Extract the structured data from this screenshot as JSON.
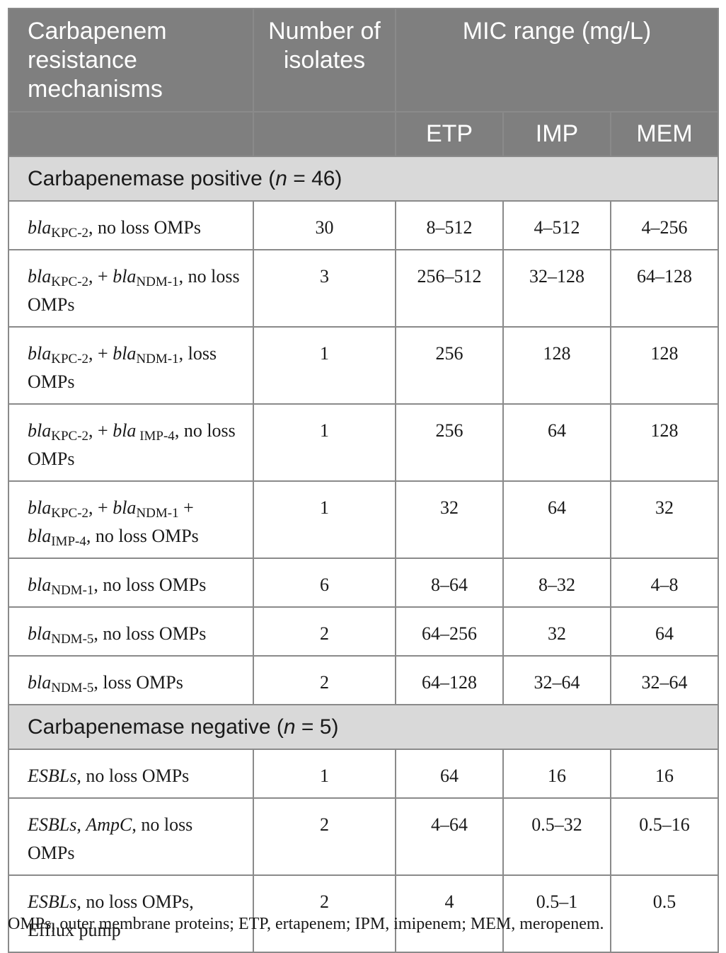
{
  "table": {
    "headers": {
      "mechanism": "Carbapenem resistance mechanisms",
      "isolates": "Number of isolates",
      "mic_range": "MIC range (mg/L)",
      "etp": "ETP",
      "imp": "IMP",
      "mem": "MEM"
    },
    "sections": [
      {
        "title_prefix": "Carbapenemase positive (",
        "title_var": "n",
        "title_suffix": " = 46)",
        "rows": [
          {
            "parts": [
              {
                "t": "bla",
                "i": true
              },
              {
                "t": "KPC-2",
                "sub": true
              },
              {
                "t": ", no loss OMPs"
              }
            ],
            "isolates": "30",
            "etp": "8–512",
            "imp": "4–512",
            "mem": "4–256"
          },
          {
            "parts": [
              {
                "t": "bla",
                "i": true
              },
              {
                "t": "KPC-2",
                "sub": true
              },
              {
                "t": ", + "
              },
              {
                "t": "bla",
                "i": true
              },
              {
                "t": "NDM-1",
                "sub": true
              },
              {
                "t": ", no loss OMPs"
              }
            ],
            "isolates": "3",
            "etp": "256–512",
            "imp": "32–128",
            "mem": "64–128"
          },
          {
            "parts": [
              {
                "t": "bla",
                "i": true
              },
              {
                "t": "KPC-2",
                "sub": true
              },
              {
                "t": ", + "
              },
              {
                "t": "bla",
                "i": true
              },
              {
                "t": "NDM-1",
                "sub": true
              },
              {
                "t": ", loss OMPs"
              }
            ],
            "isolates": "1",
            "etp": "256",
            "imp": "128",
            "mem": "128"
          },
          {
            "parts": [
              {
                "t": "bla",
                "i": true
              },
              {
                "t": "KPC-2",
                "sub": true
              },
              {
                "t": ", + "
              },
              {
                "t": "bla",
                "i": true
              },
              {
                "t": " IMP-4",
                "sub": true
              },
              {
                "t": ", no loss OMPs"
              }
            ],
            "isolates": "1",
            "etp": "256",
            "imp": "64",
            "mem": "128"
          },
          {
            "parts": [
              {
                "t": "bla",
                "i": true
              },
              {
                "t": "KPC-2",
                "sub": true
              },
              {
                "t": ", + "
              },
              {
                "t": "bla",
                "i": true
              },
              {
                "t": "NDM-1",
                "sub": true
              },
              {
                "t": " + "
              },
              {
                "t": "bla",
                "i": true
              },
              {
                "t": "IMP-4",
                "sub": true
              },
              {
                "t": ", no loss OMPs"
              }
            ],
            "isolates": "1",
            "etp": "32",
            "imp": "64",
            "mem": "32"
          },
          {
            "parts": [
              {
                "t": "bla",
                "i": true
              },
              {
                "t": "NDM-1",
                "sub": true
              },
              {
                "t": ", no loss OMPs"
              }
            ],
            "isolates": "6",
            "etp": "8–64",
            "imp": "8–32",
            "mem": "4–8"
          },
          {
            "parts": [
              {
                "t": "bla",
                "i": true
              },
              {
                "t": "NDM-5",
                "sub": true
              },
              {
                "t": ", no loss OMPs"
              }
            ],
            "isolates": "2",
            "etp": "64–256",
            "imp": "32",
            "mem": "64"
          },
          {
            "parts": [
              {
                "t": "bla",
                "i": true
              },
              {
                "t": "NDM-5",
                "sub": true
              },
              {
                "t": ", loss OMPs"
              }
            ],
            "isolates": "2",
            "etp": "64–128",
            "imp": "32–64",
            "mem": "32–64"
          }
        ]
      },
      {
        "title_prefix": "Carbapenemase negative (",
        "title_var": "n",
        "title_suffix": " = 5)",
        "rows": [
          {
            "parts": [
              {
                "t": "ESBLs",
                "i": true
              },
              {
                "t": ", no loss OMPs"
              }
            ],
            "isolates": "1",
            "etp": "64",
            "imp": "16",
            "mem": "16"
          },
          {
            "parts": [
              {
                "t": "ESBLs",
                "i": true
              },
              {
                "t": ", "
              },
              {
                "t": "AmpC",
                "i": true
              },
              {
                "t": ", no loss OMPs"
              }
            ],
            "isolates": "2",
            "etp": "4–64",
            "imp": "0.5–32",
            "mem": "0.5–16"
          },
          {
            "parts": [
              {
                "t": "ESBLs",
                "i": true
              },
              {
                "t": ", no loss OMPs, Efflux pump"
              }
            ],
            "isolates": "2",
            "etp": "4",
            "imp": "0.5–1",
            "mem": "0.5"
          }
        ]
      }
    ]
  },
  "footnote": "OMPs, outer membrane proteins; ETP, ertapenem; IPM, imipenem; MEM, meropenem."
}
